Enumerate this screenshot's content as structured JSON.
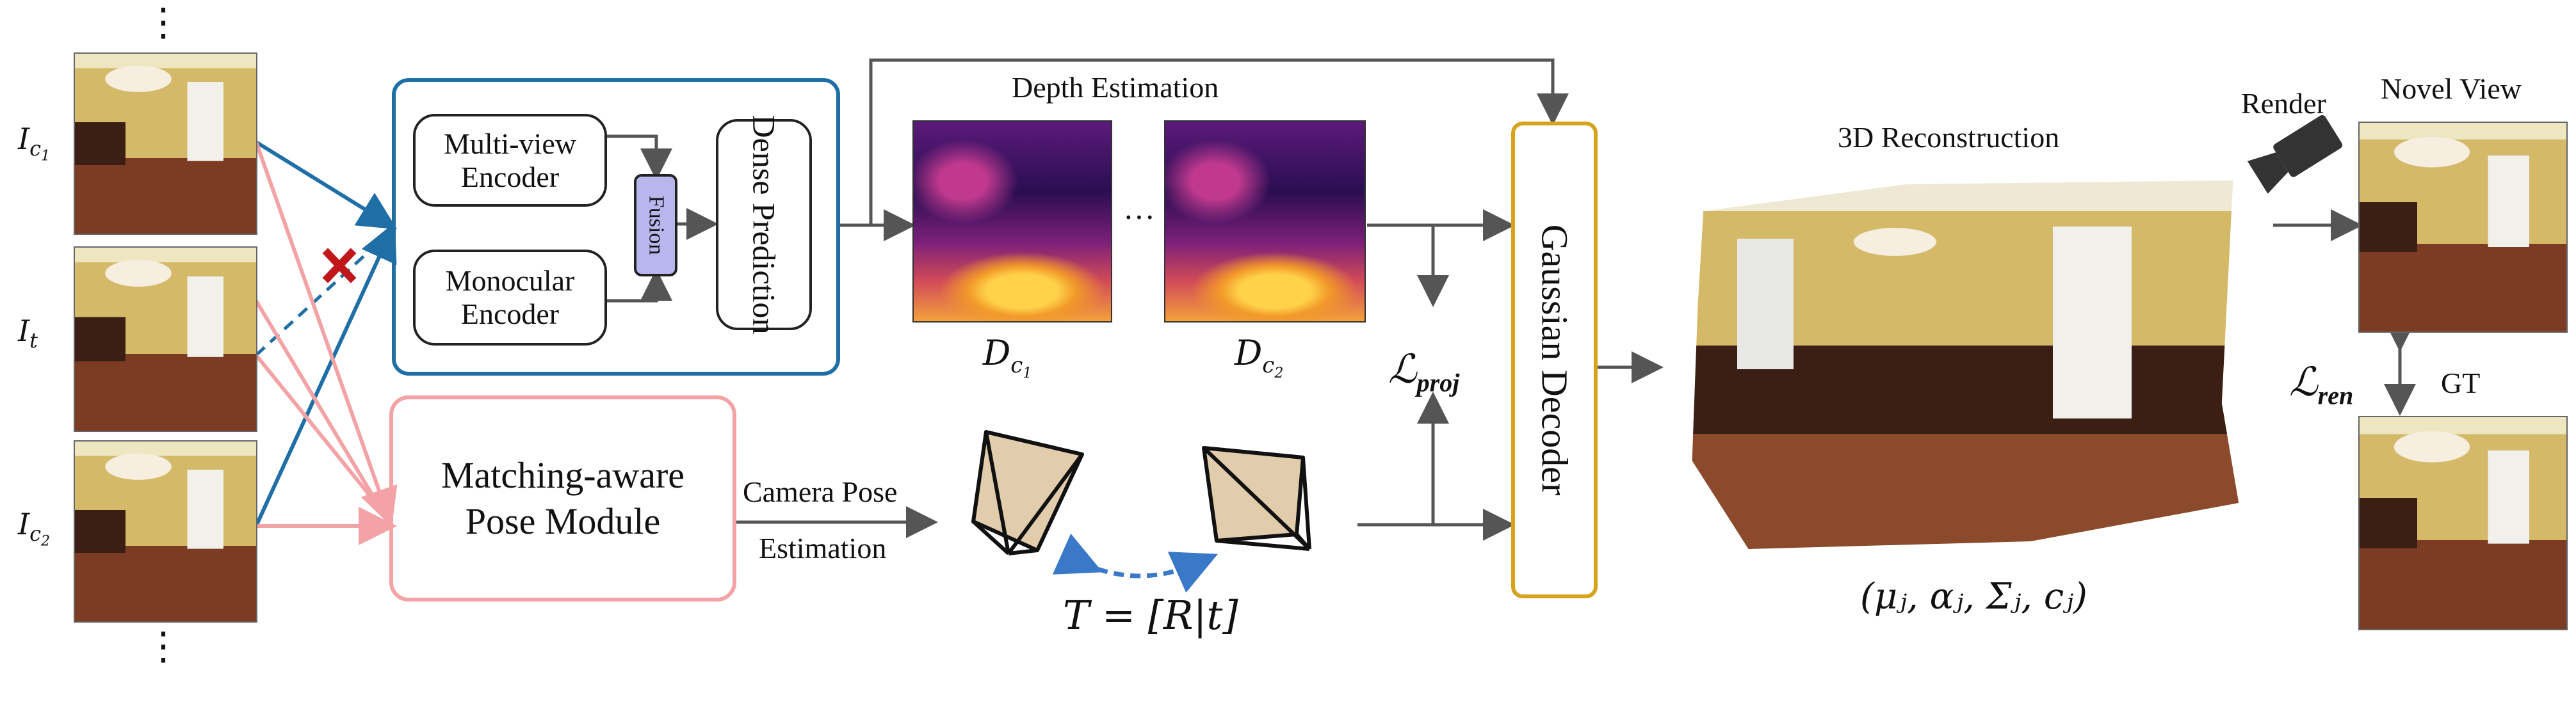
{
  "inputs": {
    "ellipsis_top": "⋮",
    "ellipsis_bottom": "⋮",
    "labels": [
      {
        "main": "I",
        "sub": "c",
        "subsub": "1"
      },
      {
        "main": "I",
        "sub": "t",
        "subsub": ""
      },
      {
        "main": "I",
        "sub": "c",
        "subsub": "2"
      }
    ]
  },
  "encoder": {
    "multiview": "Multi-view Encoder",
    "mono": "Monocular Encoder",
    "fusion": "Fusion",
    "dense": "Dense Prediction"
  },
  "pose": {
    "module": "Matching-aware Pose Module",
    "cam_label_1": "Camera Pose",
    "cam_label_2": "Estimation",
    "transform": "T = [R|t]"
  },
  "depth": {
    "title": "Depth Estimation",
    "ellipsis": "···",
    "labels": [
      {
        "main": "D",
        "sub": "c",
        "subsub": "1"
      },
      {
        "main": "D",
        "sub": "c",
        "subsub": "2"
      }
    ]
  },
  "loss": {
    "proj_main": "ℒ",
    "proj_sub": "proj",
    "ren_main": "ℒ",
    "ren_sub": "ren"
  },
  "decoder": {
    "label": "Gaussian Decoder"
  },
  "reconstruction": {
    "title": "3D Reconstruction",
    "params": "(μⱼ, αⱼ, Σⱼ, cⱼ)"
  },
  "output": {
    "render": "Render",
    "novel_view": "Novel View",
    "gt": "GT"
  },
  "colors": {
    "blue": "#1f6fa6",
    "pink": "#f3a3a6",
    "gold": "#d7a21c",
    "gray_arrow": "#555555",
    "fusion_fill": "#b9b6ee",
    "cross_red": "#c0171b",
    "dashed_blue": "#3a78c8"
  }
}
